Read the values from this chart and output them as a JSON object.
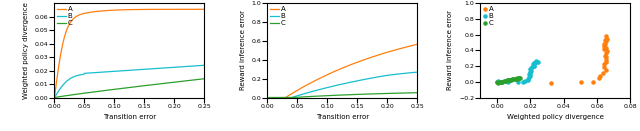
{
  "color_A": "#ff7f0e",
  "color_B": "#17becf",
  "color_C": "#2ca02c",
  "plot1": {
    "xlabel": "Transition error",
    "ylabel": "Weighted policy divergence",
    "xlim": [
      0.0,
      0.25
    ],
    "ylim": [
      0.0,
      0.07
    ],
    "yticks": [
      0.0,
      0.01,
      0.02,
      0.03,
      0.04,
      0.05,
      0.06
    ],
    "xticks": [
      0.0,
      0.05,
      0.1,
      0.15,
      0.2,
      0.25
    ]
  },
  "plot2": {
    "xlabel": "Transition error",
    "ylabel": "Reward inference error",
    "xlim": [
      0.0,
      0.25
    ],
    "ylim": [
      0.0,
      1.0
    ],
    "yticks": [
      0.0,
      0.2,
      0.4,
      0.6,
      0.8,
      1.0
    ],
    "xticks": [
      0.0,
      0.05,
      0.1,
      0.15,
      0.2,
      0.25
    ]
  },
  "plot3": {
    "xlabel": "Weighted policy divergence",
    "ylabel": "Reward inference error",
    "xlim": [
      -0.01,
      0.08
    ],
    "ylim": [
      -0.2,
      1.0
    ],
    "yticks": [
      -0.2,
      0.0,
      0.2,
      0.4,
      0.6,
      0.8,
      1.0
    ],
    "xticks": [
      0.0,
      0.02,
      0.04,
      0.06,
      0.08
    ]
  }
}
